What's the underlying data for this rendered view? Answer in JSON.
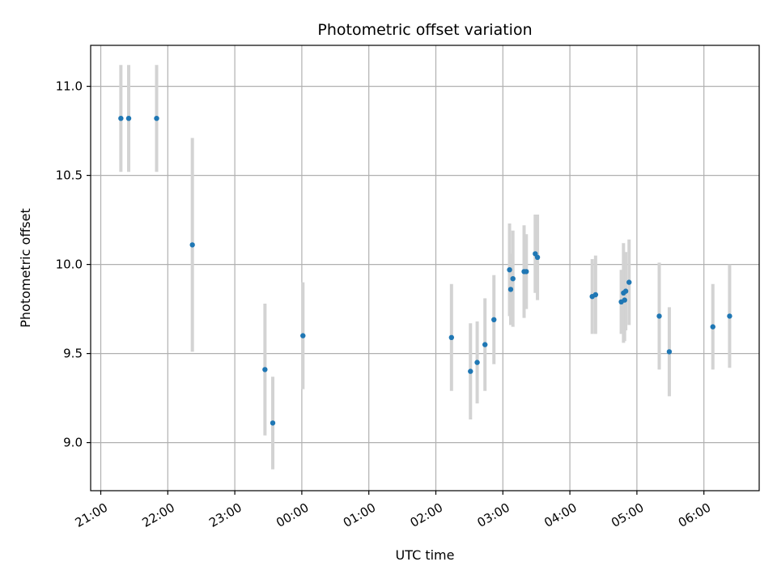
{
  "chart_data": {
    "type": "scatter",
    "title": "Photometric offset variation",
    "xlabel": "UTC time",
    "ylabel": "Photometric offset",
    "x_ticks": [
      "21:00",
      "22:00",
      "23:00",
      "00:00",
      "01:00",
      "02:00",
      "03:00",
      "04:00",
      "05:00",
      "06:00"
    ],
    "y_ticks": [
      "9.0",
      "9.5",
      "10.0",
      "10.5",
      "11.0"
    ],
    "ylim": [
      8.73,
      11.23
    ],
    "grid": true,
    "colors": {
      "marker": "#1f77b4",
      "errorbar": "#d3d3d3",
      "grid": "#b0b0b0"
    },
    "points": [
      {
        "t": "21:18",
        "y": 10.82,
        "err": 0.3
      },
      {
        "t": "21:25",
        "y": 10.82,
        "err": 0.3
      },
      {
        "t": "21:50",
        "y": 10.82,
        "err": 0.3
      },
      {
        "t": "22:22",
        "y": 10.11,
        "err": 0.6
      },
      {
        "t": "23:27",
        "y": 9.41,
        "err": 0.37
      },
      {
        "t": "23:34",
        "y": 9.11,
        "err": 0.26
      },
      {
        "t": "00:01",
        "y": 9.6,
        "err": 0.3
      },
      {
        "t": "02:14",
        "y": 9.59,
        "err": 0.3
      },
      {
        "t": "02:31",
        "y": 9.4,
        "err": 0.27
      },
      {
        "t": "02:37",
        "y": 9.45,
        "err": 0.23
      },
      {
        "t": "02:44",
        "y": 9.55,
        "err": 0.26
      },
      {
        "t": "02:52",
        "y": 9.69,
        "err": 0.25
      },
      {
        "t": "03:06",
        "y": 9.97,
        "err": 0.26
      },
      {
        "t": "03:07",
        "y": 9.86,
        "err": 0.2
      },
      {
        "t": "03:09",
        "y": 9.92,
        "err": 0.27
      },
      {
        "t": "03:19",
        "y": 9.96,
        "err": 0.26
      },
      {
        "t": "03:21",
        "y": 9.96,
        "err": 0.21
      },
      {
        "t": "03:29",
        "y": 10.06,
        "err": 0.22
      },
      {
        "t": "03:31",
        "y": 10.04,
        "err": 0.24
      },
      {
        "t": "04:20",
        "y": 9.82,
        "err": 0.21
      },
      {
        "t": "04:23",
        "y": 9.83,
        "err": 0.22
      },
      {
        "t": "04:46",
        "y": 9.79,
        "err": 0.18
      },
      {
        "t": "04:48",
        "y": 9.84,
        "err": 0.28
      },
      {
        "t": "04:49",
        "y": 9.8,
        "err": 0.23
      },
      {
        "t": "04:50",
        "y": 9.85,
        "err": 0.22
      },
      {
        "t": "04:53",
        "y": 9.9,
        "err": 0.24
      },
      {
        "t": "05:20",
        "y": 9.71,
        "err": 0.3
      },
      {
        "t": "05:29",
        "y": 9.51,
        "err": 0.25
      },
      {
        "t": "06:08",
        "y": 9.65,
        "err": 0.24
      },
      {
        "t": "06:23",
        "y": 9.71,
        "err": 0.29
      }
    ]
  }
}
